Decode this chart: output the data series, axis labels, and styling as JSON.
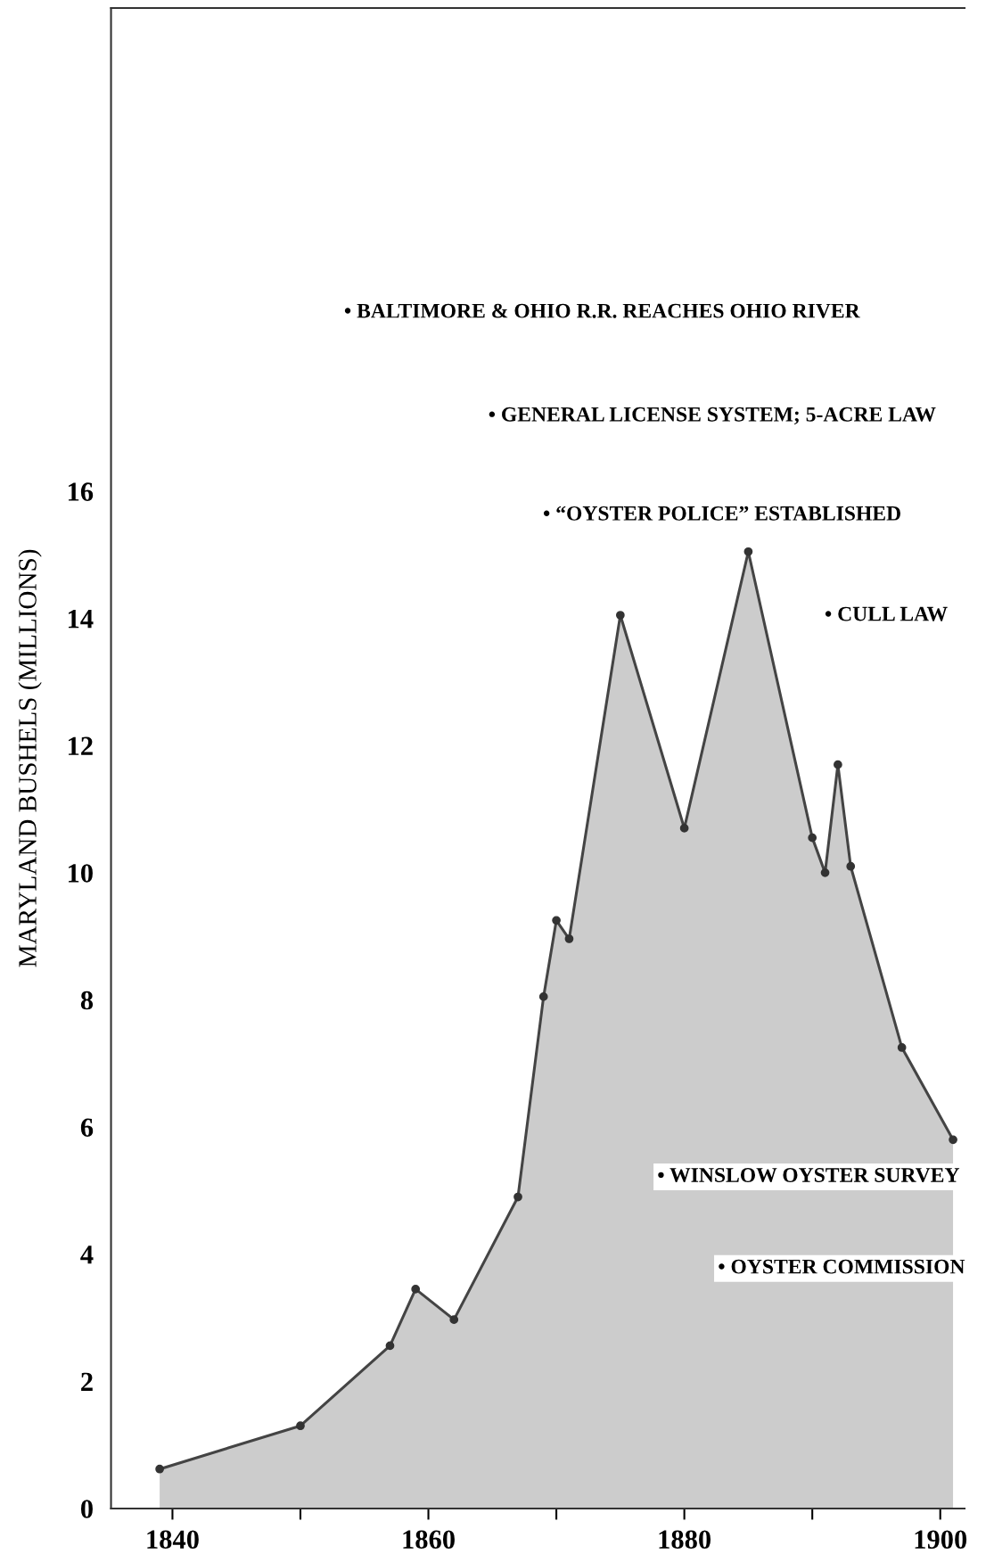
{
  "chart_data": {
    "type": "area",
    "ylabel": "MARYLAND BUSHELS (MILLIONS)",
    "x": [
      1839,
      1850,
      1857,
      1859,
      1862,
      1867,
      1869,
      1870,
      1871,
      1875,
      1880,
      1885,
      1890,
      1891,
      1892,
      1893,
      1897,
      1901
    ],
    "series": [
      {
        "color": "#cccccc",
        "values": [
          0.62,
          1.3,
          2.56,
          3.45,
          2.97,
          4.9,
          8.05,
          9.25,
          8.96,
          14.05,
          10.7,
          15.05,
          10.55,
          10.0,
          11.7,
          10.1,
          7.25,
          5.8
        ]
      }
    ],
    "xlim": [
      1835.2,
      1901.9
    ],
    "xticks": [
      {
        "value": 1840,
        "label": "1840"
      },
      {
        "value": 1850,
        "label": null
      },
      {
        "value": 1860,
        "label": "1860"
      },
      {
        "value": 1870,
        "label": null
      },
      {
        "value": 1880,
        "label": "1880"
      },
      {
        "value": 1890,
        "label": null
      },
      {
        "value": 1900,
        "label": "1900"
      }
    ],
    "ylim": [
      0,
      23.6
    ],
    "yticks": [
      0,
      2,
      4,
      6,
      8,
      10,
      12,
      14,
      16
    ],
    "grid": false,
    "marker": "circle",
    "line_style": "solid",
    "annotations": [
      "• BALTIMORE & OHIO R.R. REACHES OHIO RIVER",
      "• GENERAL LICENSE SYSTEM; 5-ACRE LAW",
      "• “OYSTER POLICE” ESTABLISHED",
      "• CULL LAW",
      "• WINSLOW OYSTER SURVEY",
      "• OYSTER COMMISSION"
    ]
  }
}
